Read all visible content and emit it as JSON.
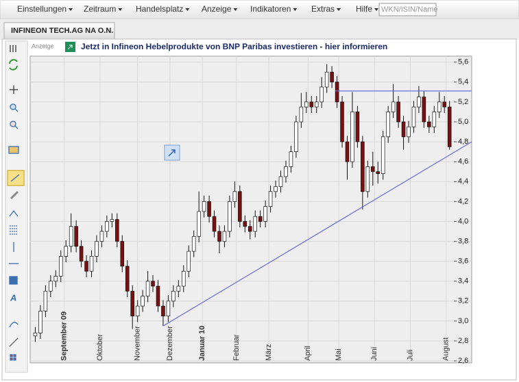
{
  "menu": [
    "Einstellungen",
    "Zeitraum",
    "Handelsplatz",
    "Anzeige",
    "Indikatoren",
    "Extras",
    "Hilfe"
  ],
  "search_placeholder": "WKN/ISIN/Name",
  "tab": "INFINEON TECH.AG NA O.N.",
  "ad": {
    "label": "Anzeige",
    "text": "Jetzt in Infineon Hebelprodukte von BNP Paribas investieren - hier informieren"
  },
  "chart_data": {
    "type": "candlestick",
    "x": [
      3,
      6,
      9,
      12,
      15,
      18,
      21,
      24,
      27,
      30,
      33,
      36,
      39,
      42,
      45,
      48,
      51,
      54,
      57,
      60,
      63,
      66,
      69,
      72,
      75,
      78,
      81,
      84,
      87,
      90,
      93,
      96,
      99,
      102,
      105,
      108,
      111,
      114,
      117,
      120,
      123,
      126,
      129,
      132,
      135,
      138,
      141,
      144,
      147,
      150,
      153,
      156,
      159,
      162,
      165,
      168,
      171,
      174,
      177,
      180,
      183,
      186,
      189,
      192,
      195,
      198,
      201,
      204,
      207,
      210,
      213,
      216,
      219,
      222,
      225,
      228,
      231,
      234,
      237,
      240,
      243,
      246
    ],
    "open": [
      2.85,
      2.88,
      3.1,
      3.3,
      3.4,
      3.45,
      3.65,
      3.75,
      3.95,
      3.75,
      3.6,
      3.5,
      3.65,
      3.8,
      3.9,
      4.0,
      4.02,
      3.8,
      3.55,
      3.3,
      3.05,
      3.15,
      3.25,
      3.4,
      3.35,
      3.15,
      3.05,
      3.2,
      3.3,
      3.35,
      3.5,
      3.7,
      3.85,
      4.1,
      4.2,
      4.05,
      3.9,
      3.8,
      3.9,
      4.2,
      4.3,
      4.0,
      3.95,
      3.9,
      4.05,
      4.0,
      4.15,
      4.3,
      4.35,
      4.45,
      4.55,
      4.7,
      5.0,
      5.15,
      5.2,
      5.15,
      5.2,
      5.35,
      5.5,
      5.4,
      5.2,
      4.8,
      4.6,
      5.1,
      4.8,
      4.3,
      4.55,
      4.5,
      4.48,
      4.85,
      5.1,
      5.2,
      5.0,
      4.85,
      4.95,
      5.15,
      5.25,
      5.0,
      4.95,
      5.1,
      5.2,
      5.15
    ],
    "high": [
      2.94,
      3.16,
      3.36,
      3.46,
      3.51,
      3.71,
      3.81,
      4.08,
      4.01,
      3.81,
      3.66,
      3.71,
      3.86,
      3.96,
      4.06,
      4.08,
      4.08,
      3.86,
      3.61,
      3.36,
      3.21,
      3.31,
      3.5,
      3.46,
      3.41,
      3.21,
      3.26,
      3.36,
      3.41,
      3.56,
      3.76,
      3.91,
      4.3,
      4.26,
      4.26,
      4.11,
      3.96,
      3.96,
      4.26,
      4.4,
      4.36,
      4.06,
      4.01,
      4.11,
      4.11,
      4.21,
      4.36,
      4.41,
      4.51,
      4.61,
      4.76,
      5.06,
      5.29,
      5.3,
      5.26,
      5.26,
      5.45,
      5.58,
      5.56,
      5.46,
      5.26,
      4.86,
      5.3,
      5.16,
      4.86,
      4.61,
      4.7,
      4.6,
      4.91,
      5.16,
      5.38,
      5.26,
      5.06,
      5.01,
      5.21,
      5.36,
      5.31,
      5.06,
      5.16,
      5.3,
      5.26,
      5.21
    ],
    "low": [
      2.79,
      2.82,
      3.04,
      3.24,
      3.34,
      3.39,
      3.59,
      3.69,
      3.69,
      3.54,
      3.44,
      3.44,
      3.59,
      3.74,
      3.84,
      3.94,
      3.74,
      3.49,
      3.24,
      2.92,
      2.99,
      3.09,
      3.19,
      3.29,
      3.09,
      2.95,
      2.99,
      3.14,
      3.24,
      3.29,
      3.44,
      3.64,
      3.79,
      4.04,
      3.99,
      3.84,
      3.68,
      3.74,
      3.84,
      4.14,
      3.94,
      3.89,
      3.82,
      3.84,
      3.94,
      3.94,
      4.09,
      4.24,
      4.29,
      4.39,
      4.49,
      4.64,
      4.94,
      5.09,
      5.09,
      5.09,
      5.14,
      5.29,
      5.34,
      5.14,
      4.74,
      4.42,
      4.54,
      4.74,
      4.12,
      4.24,
      4.36,
      4.38,
      4.42,
      4.79,
      5.04,
      4.94,
      4.72,
      4.79,
      4.89,
      5.09,
      4.94,
      4.89,
      4.89,
      5.04,
      5.09,
      4.72
    ],
    "close": [
      2.88,
      3.1,
      3.3,
      3.4,
      3.45,
      3.65,
      3.75,
      3.95,
      3.75,
      3.6,
      3.5,
      3.65,
      3.8,
      3.9,
      4.0,
      4.02,
      3.8,
      3.55,
      3.3,
      3.05,
      3.15,
      3.25,
      3.4,
      3.35,
      3.15,
      3.05,
      3.2,
      3.3,
      3.35,
      3.5,
      3.7,
      3.85,
      4.1,
      4.2,
      4.05,
      3.9,
      3.8,
      3.9,
      4.2,
      4.3,
      4.0,
      3.95,
      3.9,
      4.05,
      4.0,
      4.15,
      4.3,
      4.35,
      4.45,
      4.55,
      4.7,
      5.0,
      5.15,
      5.2,
      5.15,
      5.2,
      5.35,
      5.5,
      5.4,
      5.2,
      4.8,
      4.6,
      5.1,
      4.8,
      4.3,
      4.55,
      4.5,
      4.48,
      4.85,
      5.1,
      5.2,
      5.0,
      4.85,
      4.95,
      5.15,
      5.25,
      5.0,
      4.95,
      5.1,
      5.2,
      5.15,
      4.75
    ],
    "up_color": "#ffffff",
    "down_color": "#7a1010",
    "xlim": [
      0,
      259
    ],
    "ylim": [
      2.58,
      5.66
    ],
    "xticks": [
      {
        "value": 20,
        "label": "September 09",
        "bold": true
      },
      {
        "value": 41,
        "label": "Oktober"
      },
      {
        "value": 63,
        "label": "November"
      },
      {
        "value": 82,
        "label": "Dezember"
      },
      {
        "value": 101,
        "label": "Januar 10",
        "bold": true
      },
      {
        "value": 121,
        "label": "Februar"
      },
      {
        "value": 140,
        "label": "März"
      },
      {
        "value": 163,
        "label": "April"
      },
      {
        "value": 181,
        "label": "Mai"
      },
      {
        "value": 202,
        "label": "Juni"
      },
      {
        "value": 223,
        "label": "Juli"
      },
      {
        "value": 244,
        "label": "August"
      }
    ],
    "yticks": [
      {
        "value": 2.6,
        "label": "2,6"
      },
      {
        "value": 2.8,
        "label": "2,8"
      },
      {
        "value": 3.0,
        "label": "3,0"
      },
      {
        "value": 3.2,
        "label": "3,2"
      },
      {
        "value": 3.4,
        "label": "3,4"
      },
      {
        "value": 3.6,
        "label": "3,6"
      },
      {
        "value": 3.8,
        "label": "3,8"
      },
      {
        "value": 4.0,
        "label": "4,0"
      },
      {
        "value": 4.2,
        "label": "4,2"
      },
      {
        "value": 4.4,
        "label": "4,4"
      },
      {
        "value": 4.6,
        "label": "4,6"
      },
      {
        "value": 4.8,
        "label": "4,8"
      },
      {
        "value": 5.0,
        "label": "5,0"
      },
      {
        "value": 5.2,
        "label": "5,2"
      },
      {
        "value": 5.4,
        "label": "5,4"
      },
      {
        "value": 5.6,
        "label": "5,6"
      }
    ],
    "grid": true,
    "drawings": [
      {
        "x": [
          179,
          259
        ],
        "y": [
          5.31,
          5.31
        ],
        "color": "#6b6bdc"
      },
      {
        "x": [
          78,
          259
        ],
        "y": [
          2.95,
          4.8
        ],
        "color": "#6b6bdc"
      }
    ]
  }
}
